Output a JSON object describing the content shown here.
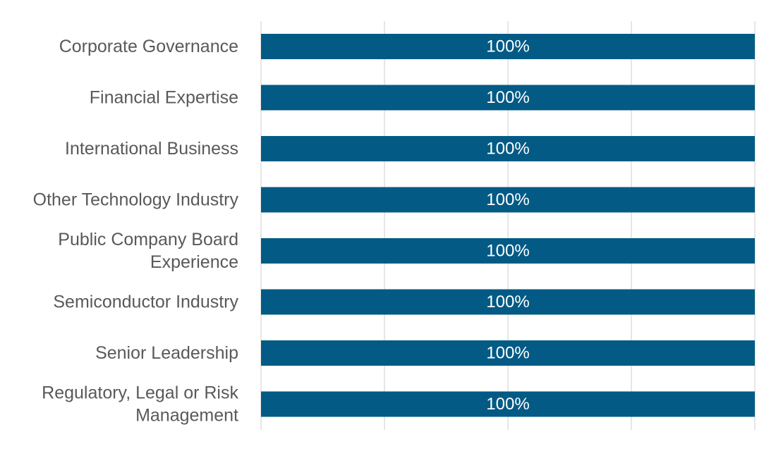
{
  "chart_data": {
    "type": "bar",
    "orientation": "horizontal",
    "categories": [
      [
        "Corporate Governance"
      ],
      [
        "Financial Expertise"
      ],
      [
        "International Business"
      ],
      [
        "Other Technology Industry"
      ],
      [
        "Public Company Board",
        "Experience"
      ],
      [
        "Semiconductor Industry"
      ],
      [
        "Senior Leadership"
      ],
      [
        "Regulatory, Legal or Risk",
        "Management"
      ]
    ],
    "values": [
      100,
      100,
      100,
      100,
      100,
      100,
      100,
      100
    ],
    "data_labels": [
      "100%",
      "100%",
      "100%",
      "100%",
      "100%",
      "100%",
      "100%",
      "100%"
    ],
    "xlim": [
      0,
      100
    ],
    "gridlines": [
      0,
      25,
      50,
      75,
      100
    ],
    "bar_color": "#035a85",
    "label_color": "#ffffff",
    "category_label_color": "#595959",
    "grid_color": "#e6e6e6",
    "title": "",
    "xlabel": "",
    "ylabel": ""
  }
}
